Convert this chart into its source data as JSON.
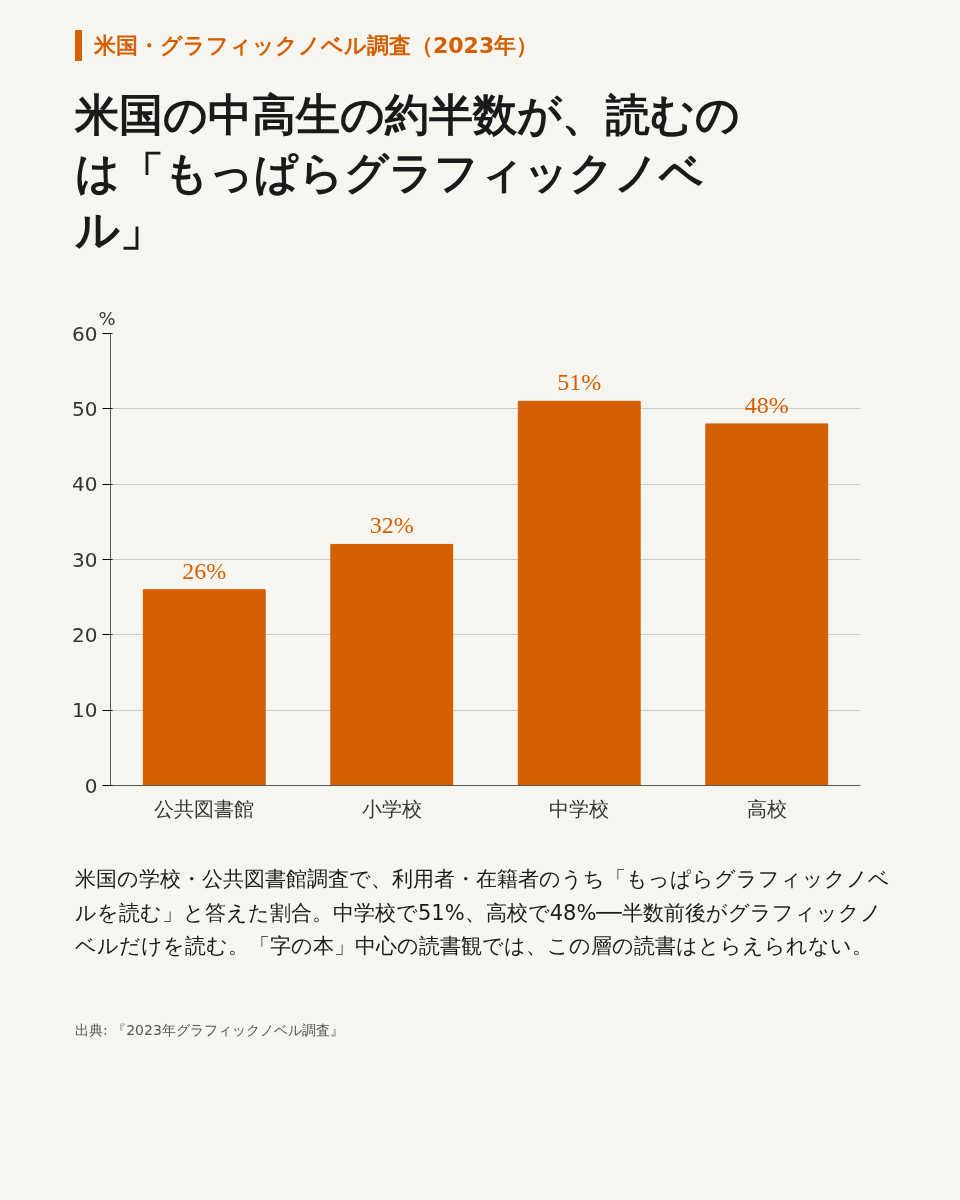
{
  "chart_data": {
    "type": "bar",
    "subtitle": "米国・グラフィックノベル調査（2023年）",
    "title": "米国の中高生の約半数が、読むのは「もっぱらグラフィックノベル」",
    "ylabel": "%",
    "categories": [
      "公共図書館",
      "小学校",
      "中学校",
      "高校"
    ],
    "values": [
      26,
      32,
      51,
      48
    ],
    "value_labels": [
      "26%",
      "32%",
      "51%",
      "48%"
    ],
    "color": "#d35f00",
    "ylim": [
      0,
      60
    ],
    "yticks": [
      0,
      10,
      20,
      30,
      40,
      50,
      60
    ],
    "grid": "y",
    "annotations": [
      "米国の学校・公共図書館調査で、利用者・在籍者のうち「もっぱらグラフィックノベルを読む」と答えた割合。中学校で51%、高校で48%──半数前後がグラフィックノベルだけを読む。「字の本」中心の読書観では、この層の読書はとらえられない。",
      "出典: 『2023年グラフィックノベル調査』"
    ]
  }
}
